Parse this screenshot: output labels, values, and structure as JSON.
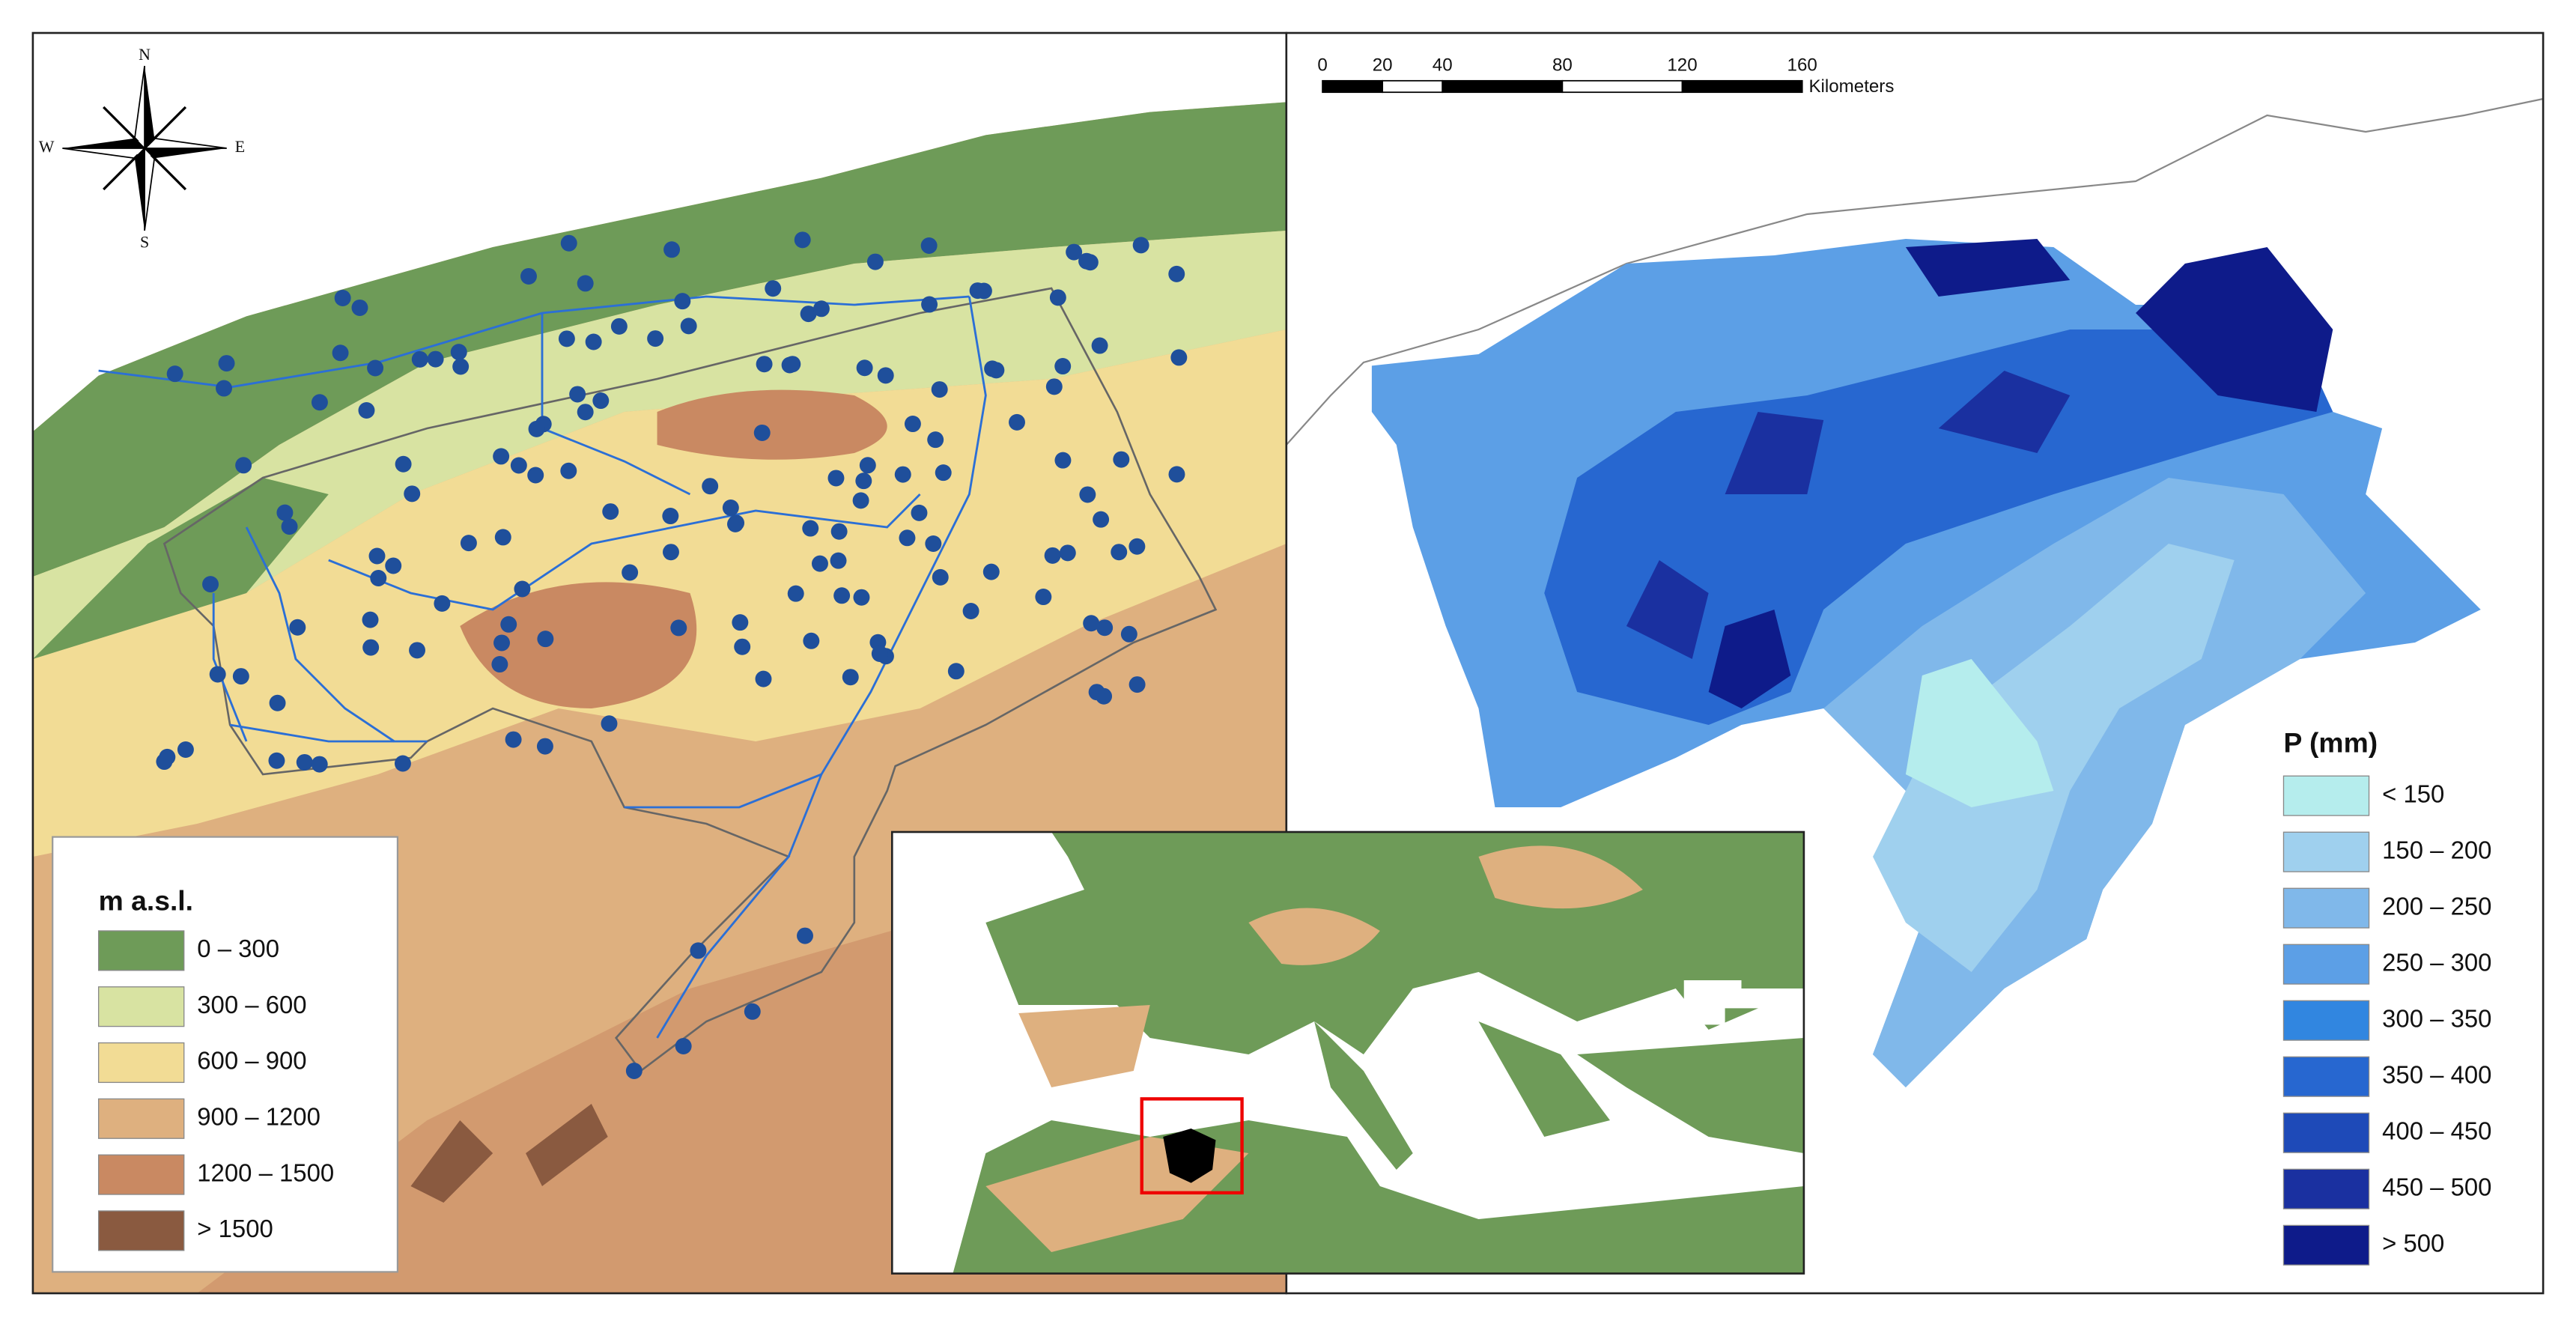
{
  "compass": {
    "north": "N",
    "south": "S",
    "east": "E",
    "west": "W"
  },
  "scale_bar": {
    "ticks": [
      0,
      20,
      40,
      80,
      120,
      160
    ],
    "unit": "Kilometers"
  },
  "elevation_legend": {
    "title": "m a.s.l.",
    "items": [
      {
        "label": "0 – 300",
        "color": "#6e9b58"
      },
      {
        "label": "300 – 600",
        "color": "#d8e3a2"
      },
      {
        "label": "600 – 900",
        "color": "#f2dc95"
      },
      {
        "label": "900 – 1200",
        "color": "#deb07f"
      },
      {
        "label": "1200 – 1500",
        "color": "#c98962"
      },
      {
        "label": "> 1500",
        "color": "#8a5a40"
      }
    ]
  },
  "precipitation_legend": {
    "title": "P (mm)",
    "items": [
      {
        "label": "< 150",
        "color": "#b5eded"
      },
      {
        "label": "150 – 200",
        "color": "#9fd0ee"
      },
      {
        "label": "200 – 250",
        "color": "#80b8ea"
      },
      {
        "label": "250 – 300",
        "color": "#5c9fe6"
      },
      {
        "label": "300 – 350",
        "color": "#3186e0"
      },
      {
        "label": "350 – 400",
        "color": "#2767d0"
      },
      {
        "label": "400 – 450",
        "color": "#1e4ab8"
      },
      {
        "label": "450 – 500",
        "color": "#1a30a0"
      },
      {
        "label": "> 500",
        "color": "#0e1b8a"
      }
    ]
  }
}
